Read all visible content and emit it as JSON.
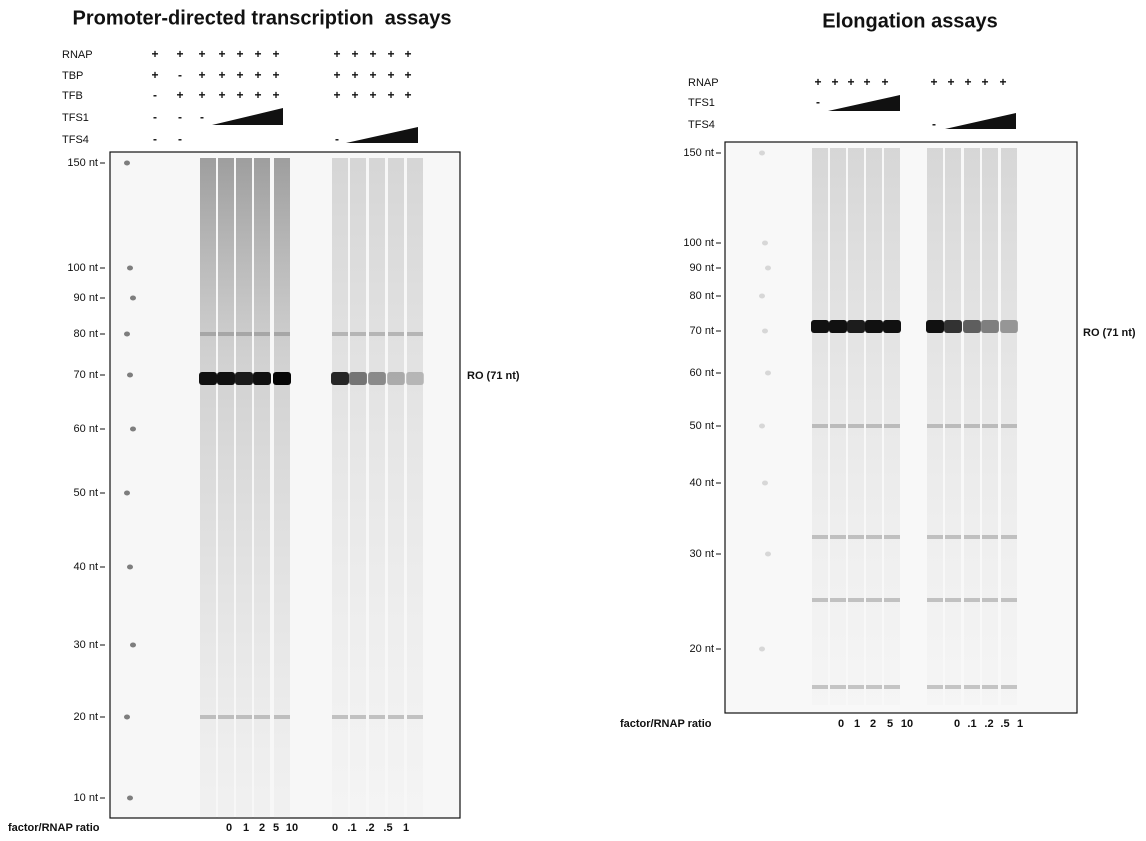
{
  "left": {
    "title": "Promoter-directed transcription  assays",
    "rows": [
      {
        "label": "RNAP",
        "marks": [
          "+",
          "+",
          "+",
          "+",
          "+",
          "+",
          "+",
          "+",
          "+",
          "+",
          "+",
          "+"
        ]
      },
      {
        "label": "TBP",
        "marks": [
          "+",
          "-",
          "+",
          "+",
          "+",
          "+",
          "+",
          "+",
          "+",
          "+",
          "+",
          "+"
        ]
      },
      {
        "label": "TFB",
        "marks": [
          "-",
          "+",
          "+",
          "+",
          "+",
          "+",
          "+",
          "+",
          "+",
          "+",
          "+",
          "+"
        ]
      },
      {
        "label": "TFS1",
        "marks": [
          "-",
          "-",
          "-"
        ]
      },
      {
        "label": "TFS4",
        "marks": [
          "-",
          "-",
          "-"
        ]
      }
    ],
    "markers": [
      "150 nt",
      "100 nt",
      "90 nt",
      "80 nt",
      "70 nt",
      "60 nt",
      "50 nt",
      "40 nt",
      "30 nt",
      "20 nt",
      "10 nt"
    ],
    "product_label": "RO (71 nt)",
    "ratio_label": "factor/RNAP ratio",
    "ratios": [
      "0",
      "1",
      "2",
      "5",
      "10",
      "0",
      ".1",
      ".2",
      ".5",
      "1"
    ]
  },
  "right": {
    "title": "Elongation assays",
    "rows": [
      {
        "label": "RNAP",
        "marks": [
          "+",
          "+",
          "+",
          "+",
          "+",
          "+",
          "+",
          "+",
          "+",
          "+"
        ]
      },
      {
        "label": "TFS1",
        "marks": [
          "-"
        ]
      },
      {
        "label": "TFS4",
        "marks": [
          "-"
        ]
      }
    ],
    "markers": [
      "150 nt",
      "100 nt",
      "90 nt",
      "80 nt",
      "70 nt",
      "60 nt",
      "50 nt",
      "40 nt",
      "30 nt",
      "20 nt"
    ],
    "product_label": "RO (71 nt)",
    "ratio_label": "factor/RNAP ratio",
    "ratios": [
      "0",
      "1",
      "2",
      "5",
      "10",
      "0",
      ".1",
      ".2",
      ".5",
      "1"
    ]
  }
}
